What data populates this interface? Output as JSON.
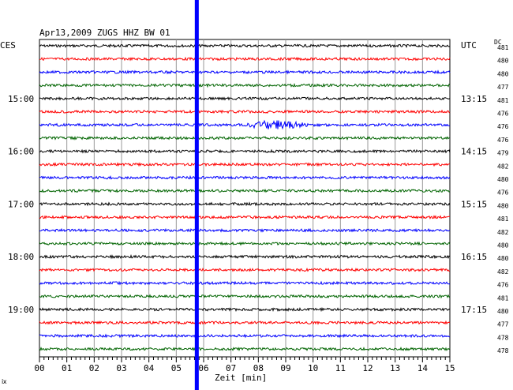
{
  "header": {
    "title": "Apr13,2009  ZUGS HHZ BW 01",
    "left_zone": "CES",
    "right_zone": "UTC",
    "dc_label": "DC"
  },
  "chart_data": {
    "type": "line",
    "title": "Apr13,2009  ZUGS HHZ BW 01",
    "xlabel": "Zeit [min]",
    "ylabel": "",
    "xlim": [
      0,
      15
    ],
    "x_ticks": [
      "00",
      "01",
      "02",
      "03",
      "04",
      "05",
      "06",
      "07",
      "08",
      "09",
      "10",
      "11",
      "12",
      "13",
      "14",
      "15"
    ],
    "grid": true,
    "trace_interval_minutes": 15,
    "trace_colors": [
      "#000000",
      "#ff0000",
      "#0000ff",
      "#006400"
    ],
    "marker": {
      "x_minutes": 5.75,
      "color": "#0000ff"
    },
    "left_time_labels": [
      "15:00",
      "16:00",
      "17:00",
      "18:00",
      "19:00"
    ],
    "right_time_labels": [
      "13:15",
      "14:15",
      "15:15",
      "16:15",
      "17:15"
    ],
    "label_every_n_traces": 4,
    "first_labeled_trace_index": 4,
    "dc_offsets": [
      481,
      480,
      480,
      477,
      481,
      476,
      476,
      476,
      479,
      482,
      480,
      476,
      480,
      481,
      482,
      480,
      480,
      482,
      476,
      481,
      480,
      477,
      478,
      478
    ],
    "event": {
      "trace_index": 6,
      "start_minutes": 7.6,
      "end_minutes": 10.0,
      "peak_minutes": 8.6
    }
  },
  "footer": {
    "corner_mark": "ⅸ"
  }
}
